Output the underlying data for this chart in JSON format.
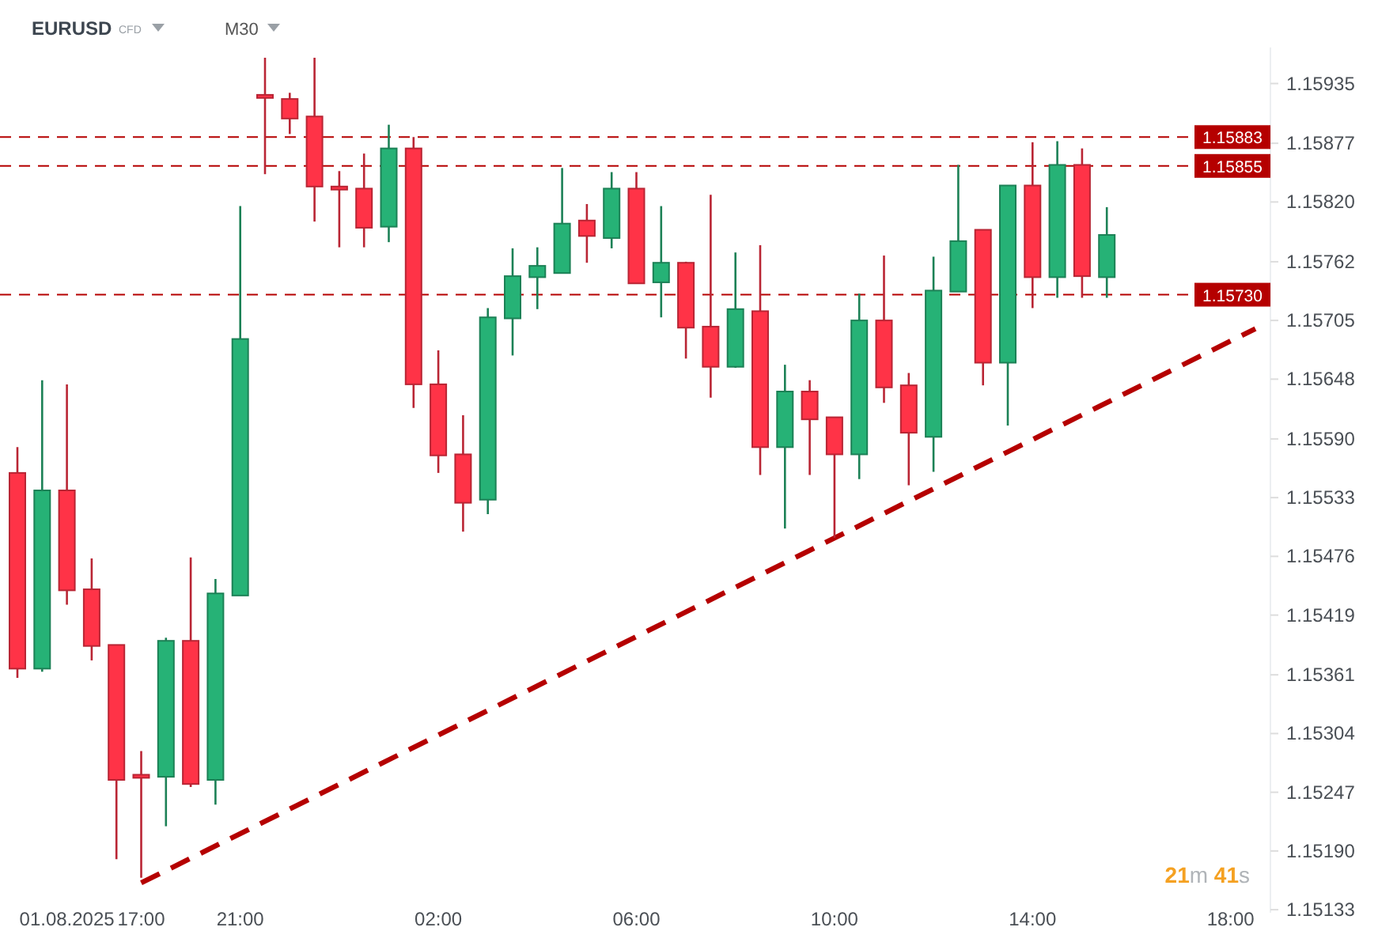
{
  "chart_data": {
    "type": "candlestick",
    "title": "EURUSD",
    "subtitle": "CFD",
    "annotations": [
      "M30",
      "21m 41s"
    ],
    "categories": [
      null,
      null,
      "01.08.2025",
      null,
      null,
      "17:00",
      null,
      null,
      null,
      "21:00",
      null,
      null,
      null,
      null,
      null,
      null,
      null,
      "02:00",
      null,
      null,
      null,
      null,
      null,
      null,
      null,
      "06:00",
      null,
      null,
      null,
      null,
      null,
      null,
      null,
      "10:00",
      null,
      null,
      null,
      null,
      null,
      null,
      null,
      "14:00",
      null,
      null,
      null,
      null,
      null,
      null,
      null,
      "18:00",
      null
    ],
    "ohlc": [
      [
        1.15557,
        1.15582,
        1.15358,
        1.15367
      ],
      [
        1.15367,
        1.15647,
        1.15364,
        1.1554
      ],
      [
        1.1554,
        1.15643,
        1.15429,
        1.15443
      ],
      [
        1.15444,
        1.15474,
        1.15375,
        1.15389
      ],
      [
        1.1539,
        1.1539,
        1.15182,
        1.15259
      ],
      [
        1.15264,
        1.15287,
        1.15164,
        1.15261
      ],
      [
        1.15262,
        1.15397,
        1.15214,
        1.15394
      ],
      [
        1.15394,
        1.15475,
        1.15252,
        1.15255
      ],
      [
        1.15259,
        1.15454,
        1.15235,
        1.1544
      ],
      [
        1.15438,
        1.15816,
        1.15438,
        1.15687
      ],
      [
        1.15924,
        1.1596,
        1.15847,
        1.15921
      ],
      [
        1.1592,
        1.15926,
        1.15886,
        1.15901
      ],
      [
        1.15903,
        1.1596,
        1.15801,
        1.15835
      ],
      [
        1.15835,
        1.1585,
        1.15776,
        1.15832
      ],
      [
        1.15833,
        1.15867,
        1.15776,
        1.15795
      ],
      [
        1.15796,
        1.15895,
        1.15781,
        1.15872
      ],
      [
        1.15872,
        1.15883,
        1.1562,
        1.15643
      ],
      [
        1.15643,
        1.15676,
        1.15557,
        1.15574
      ],
      [
        1.15575,
        1.15613,
        1.155,
        1.15528
      ],
      [
        1.15531,
        1.15717,
        1.15517,
        1.15708
      ],
      [
        1.15707,
        1.15775,
        1.15671,
        1.15748
      ],
      [
        1.15747,
        1.15776,
        1.15716,
        1.15758
      ],
      [
        1.15751,
        1.15853,
        1.15751,
        1.15799
      ],
      [
        1.15802,
        1.15818,
        1.15761,
        1.15787
      ],
      [
        1.15785,
        1.15849,
        1.15775,
        1.15833
      ],
      [
        1.15833,
        1.15849,
        1.15741,
        1.15741
      ],
      [
        1.15742,
        1.15816,
        1.15708,
        1.15761
      ],
      [
        1.15761,
        1.15762,
        1.15668,
        1.15698
      ],
      [
        1.15699,
        1.15827,
        1.1563,
        1.1566
      ],
      [
        1.1566,
        1.15771,
        1.15659,
        1.15716
      ],
      [
        1.15714,
        1.15778,
        1.15555,
        1.15582
      ],
      [
        1.15582,
        1.15662,
        1.15503,
        1.15636
      ],
      [
        1.15636,
        1.15647,
        1.15555,
        1.15609
      ],
      [
        1.15611,
        1.15611,
        1.15494,
        1.15575
      ],
      [
        1.15575,
        1.15731,
        1.15551,
        1.15705
      ],
      [
        1.15705,
        1.15768,
        1.15625,
        1.1564
      ],
      [
        1.15642,
        1.15654,
        1.15545,
        1.15596
      ],
      [
        1.15592,
        1.15767,
        1.15558,
        1.15734
      ],
      [
        1.15733,
        1.15856,
        1.15733,
        1.15782
      ],
      [
        1.15793,
        1.15793,
        1.15642,
        1.15664
      ],
      [
        1.15664,
        1.15836,
        1.15603,
        1.15836
      ],
      [
        1.15836,
        1.15878,
        1.15717,
        1.15747
      ],
      [
        1.15747,
        1.15879,
        1.15727,
        1.15856
      ],
      [
        1.15856,
        1.15872,
        1.15727,
        1.15748
      ],
      [
        1.15747,
        1.15815,
        1.15727,
        1.15788
      ],
      null,
      null,
      null,
      null,
      null,
      null
    ],
    "colors": [
      "#ff3347",
      "#26b276",
      "#ff3347",
      "#ff3347",
      "#ff3347",
      "#ff3347",
      "#26b276",
      "#ff3347",
      "#26b276",
      "#26b276",
      "#ff3347",
      "#ff3347",
      "#ff3347",
      "#ff3347",
      "#ff3347",
      "#26b276",
      "#ff3347",
      "#ff3347",
      "#ff3347",
      "#26b276",
      "#26b276",
      "#26b276",
      "#26b276",
      "#ff3347",
      "#26b276",
      "#ff3347",
      "#26b276",
      "#ff3347",
      "#ff3347",
      "#26b276",
      "#ff3347",
      "#26b276",
      "#ff3347",
      "#ff3347",
      "#26b276",
      "#ff3347",
      "#ff3347",
      "#26b276",
      "#26b276",
      "#ff3347",
      "#26b276",
      "#ff3347",
      "#26b276",
      "#ff3347",
      "#26b276",
      null,
      null,
      null,
      null,
      null,
      null
    ],
    "series": [
      {
        "type": "line",
        "color": "#b50000",
        "line_style": "dashed",
        "values": [
          null,
          null,
          null,
          null,
          null,
          1.15159,
          null,
          null,
          null,
          null,
          null,
          null,
          null,
          null,
          null,
          null,
          null,
          null,
          null,
          null,
          null,
          null,
          null,
          null,
          null,
          null,
          null,
          null,
          null,
          null,
          null,
          null,
          null,
          null,
          null,
          null,
          null,
          null,
          null,
          null,
          null,
          null,
          null,
          null,
          null,
          null,
          null,
          null,
          null,
          null,
          1.15697
        ]
      }
    ],
    "ylim": [
      1.1513,
      1.1597
    ],
    "yticks": [
      1.15935,
      1.15877,
      {
        "value": 1.1582,
        "label": "1.15820"
      },
      1.15762,
      1.15705,
      1.15648,
      {
        "value": 1.1559,
        "label": "1.15590"
      },
      1.15533,
      1.15476,
      1.15419,
      1.15361,
      1.15304,
      1.15247,
      {
        "value": 1.1519,
        "label": "1.15190"
      },
      1.15133
    ],
    "ref_lines": [
      {
        "axis": "y",
        "value": 1.15883,
        "label": "1.15883",
        "color": "#b50000",
        "line_style": "dashed"
      },
      {
        "axis": "y",
        "value": 1.15855,
        "label": "1.15855",
        "color": "#b50000",
        "line_style": "dashed"
      },
      {
        "axis": "y",
        "value": 1.1573,
        "label": "1.15730",
        "color": "#b50000",
        "line_style": "dashed"
      }
    ]
  }
}
